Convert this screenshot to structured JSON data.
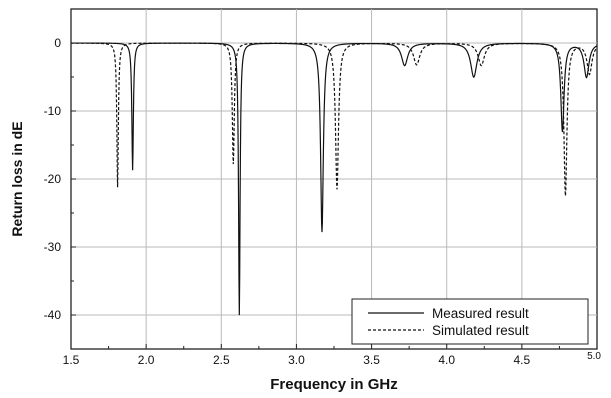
{
  "chart_data": {
    "type": "line",
    "xlabel": "Frequency in GHz",
    "ylabel": "Return loss in dE",
    "xlim": [
      1.5,
      5.0
    ],
    "ylim": [
      -45,
      5
    ],
    "grid": true,
    "legend_position": "bottom-right",
    "x_ticks": [
      "1.5",
      "2.0",
      "2.5",
      "3.0",
      "3.5",
      "4.0",
      "4.5",
      "5.0"
    ],
    "y_ticks": [
      "0",
      "-10",
      "-20",
      "-30",
      "-40"
    ],
    "series": [
      {
        "name": "Measured result",
        "style": "solid",
        "color": "#111111",
        "resonances": [
          {
            "x": 1.91,
            "depth": -18.7,
            "width": 0.006
          },
          {
            "x": 2.62,
            "depth": -40.0,
            "width": 0.006
          },
          {
            "x": 3.17,
            "depth": -27.8,
            "width": 0.011
          },
          {
            "x": 3.72,
            "depth": -3.3,
            "width": 0.025
          },
          {
            "x": 4.18,
            "depth": -5.0,
            "width": 0.025
          },
          {
            "x": 4.77,
            "depth": -13.0,
            "width": 0.013
          },
          {
            "x": 4.93,
            "depth": -5.0,
            "width": 0.02
          }
        ]
      },
      {
        "name": "Simulated result",
        "style": "dashed",
        "color": "#111111",
        "resonances": [
          {
            "x": 1.81,
            "depth": -21.2,
            "width": 0.006
          },
          {
            "x": 2.58,
            "depth": -17.8,
            "width": 0.008
          },
          {
            "x": 3.27,
            "depth": -21.5,
            "width": 0.012
          },
          {
            "x": 3.8,
            "depth": -3.2,
            "width": 0.025
          },
          {
            "x": 4.23,
            "depth": -3.3,
            "width": 0.025
          },
          {
            "x": 4.79,
            "depth": -22.4,
            "width": 0.012
          },
          {
            "x": 4.95,
            "depth": -4.5,
            "width": 0.02
          }
        ]
      }
    ]
  }
}
